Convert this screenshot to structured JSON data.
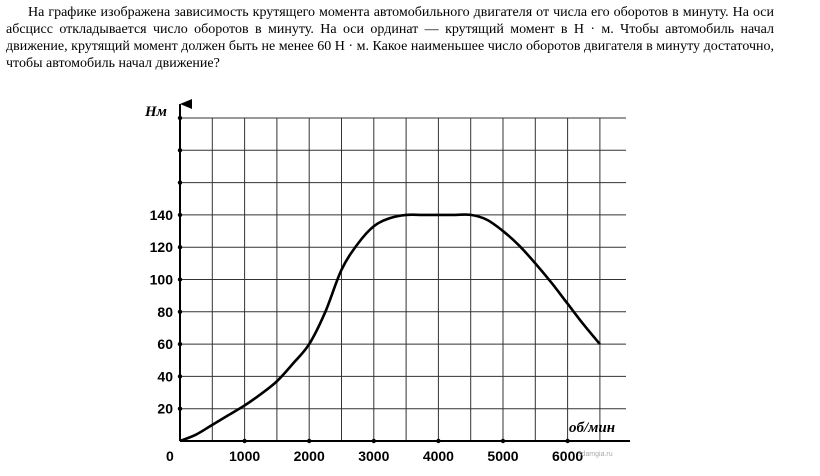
{
  "problem": {
    "text": "На графике изображена зависимость крутящего момента автомобильного двигателя от числа его оборотов в минуту. На оси абсцисс откладывается число оборотов в минуту. На оси ординат — крутящий момент в Н · м. Чтобы автомобиль начал движение, крутящий момент должен быть не менее 60 Н · м. Какое наименьшее число оборотов двигателя в минуту достаточно, чтобы автомобиль начал движение?"
  },
  "watermark": "sdamgia.ru",
  "chart_data": {
    "type": "line",
    "xlabel": "об/мин",
    "ylabel": "Нм",
    "origin_label": "0",
    "xlim": [
      0,
      7000
    ],
    "ylim": [
      0,
      200
    ],
    "x_ticks": [
      1000,
      2000,
      3000,
      4000,
      5000,
      6000
    ],
    "x_tick_labels": [
      "1000",
      "2000",
      "3000",
      "4000",
      "5000",
      "6000"
    ],
    "y_ticks": [
      20,
      40,
      60,
      80,
      100,
      120,
      140
    ],
    "y_tick_labels": [
      "20",
      "40",
      "60",
      "80",
      "100",
      "120",
      "140"
    ],
    "grid": true,
    "grid_step_x": 500,
    "grid_step_y": 20,
    "series": [
      {
        "x": [
          0,
          250,
          500,
          750,
          1000,
          1250,
          1500,
          1750,
          2000,
          2250,
          2500,
          2750,
          3000,
          3250,
          3500,
          3750,
          4000,
          4250,
          4500,
          4750,
          5000,
          5250,
          5500,
          5750,
          6000,
          6250,
          6500
        ],
        "y": [
          0,
          4,
          10,
          16,
          22,
          29,
          37,
          48,
          60,
          80,
          106,
          122,
          133,
          138,
          140,
          140,
          140,
          140,
          140,
          137,
          130,
          121,
          110,
          98,
          85,
          72,
          60
        ]
      }
    ]
  }
}
